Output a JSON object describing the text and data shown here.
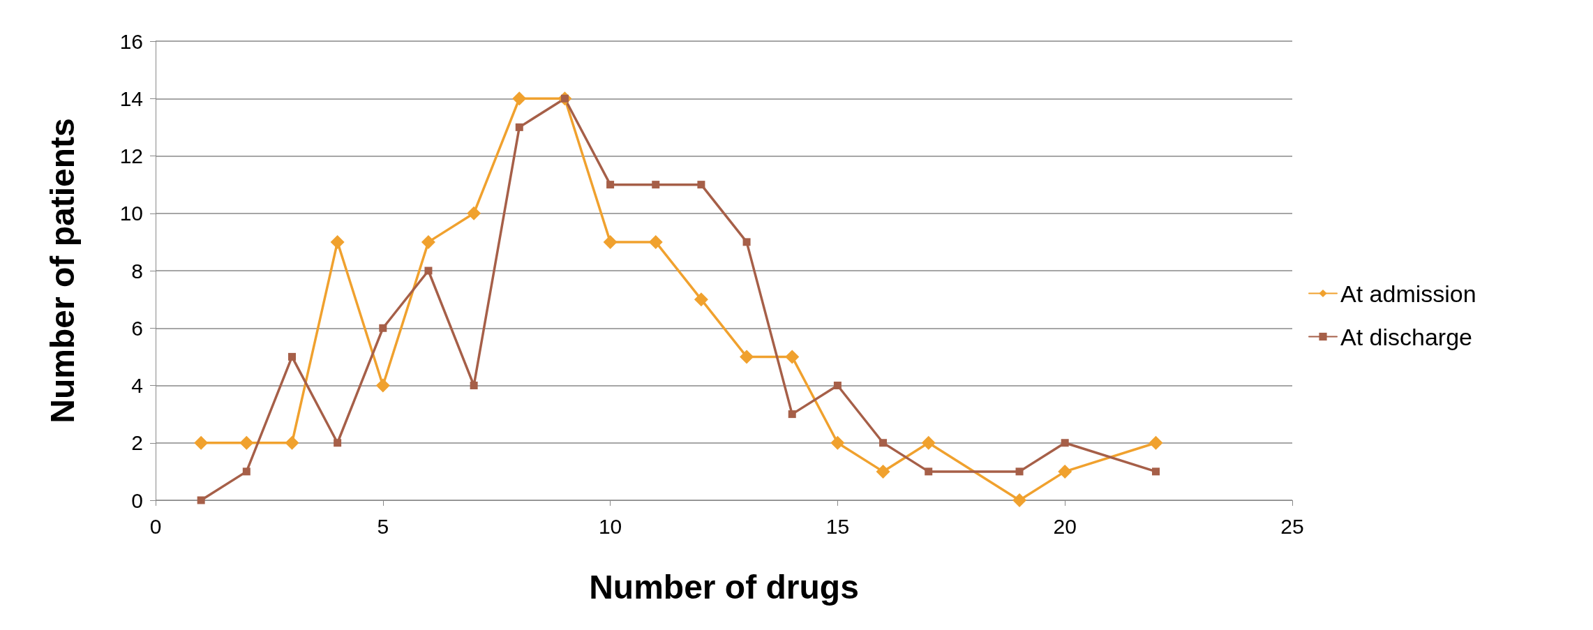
{
  "chart_data": {
    "type": "line",
    "xlabel": "Number of drugs",
    "ylabel": "Number of patients",
    "x": [
      1,
      2,
      3,
      4,
      5,
      6,
      7,
      8,
      9,
      10,
      11,
      12,
      13,
      14,
      15,
      16,
      17,
      19,
      20,
      22
    ],
    "series": [
      {
        "name": "At admission",
        "color": "#f0a12e",
        "marker": "diamond",
        "values": [
          2,
          2,
          2,
          9,
          4,
          9,
          10,
          14,
          14,
          9,
          9,
          7,
          5,
          5,
          2,
          1,
          2,
          0,
          1,
          2
        ]
      },
      {
        "name": "At discharge",
        "color": "#a65f48",
        "marker": "square",
        "values": [
          0,
          1,
          5,
          2,
          6,
          8,
          4,
          13,
          14,
          11,
          11,
          11,
          9,
          3,
          4,
          2,
          1,
          1,
          2,
          1
        ]
      }
    ],
    "xlim": [
      0,
      25
    ],
    "xticks": [
      0,
      5,
      10,
      15,
      20,
      25
    ],
    "ylim": [
      0,
      16
    ],
    "yticks": [
      0,
      2,
      4,
      6,
      8,
      10,
      12,
      14,
      16
    ],
    "grid": "y",
    "legend": "right",
    "line_style": "solid"
  }
}
